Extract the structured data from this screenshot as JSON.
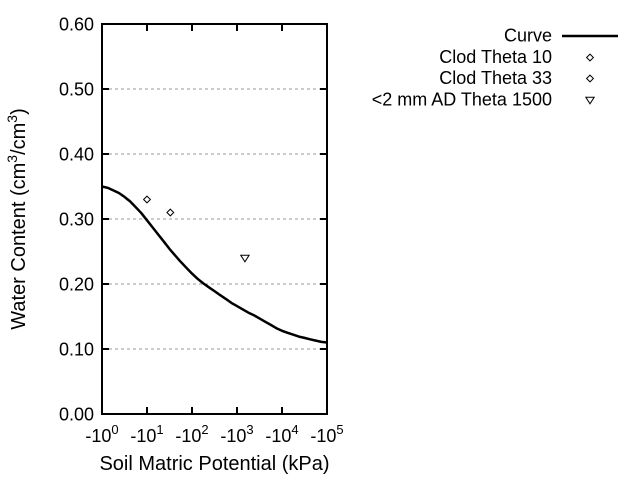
{
  "window": {
    "background": "#ffffff",
    "title": ""
  },
  "chart_data": {
    "type": "line",
    "title": "",
    "xlabel": "Soil Matric Potential (kPa)",
    "ylabel": "Water Content (cm3/cm3)",
    "ylabel_rich": [
      {
        "text": "Water Content (cm"
      },
      {
        "sup": "3"
      },
      {
        "text": "/cm"
      },
      {
        "sup": "3"
      },
      {
        "text": ")"
      }
    ],
    "x_axis": {
      "scale": "negative log10, kPa",
      "range_decades": [
        0,
        5
      ],
      "ticks": [
        {
          "mantissa": "-10",
          "exponent": "0",
          "decade": 0
        },
        {
          "mantissa": "-10",
          "exponent": "1",
          "decade": 1
        },
        {
          "mantissa": "-10",
          "exponent": "2",
          "decade": 2
        },
        {
          "mantissa": "-10",
          "exponent": "3",
          "decade": 3
        },
        {
          "mantissa": "-10",
          "exponent": "4",
          "decade": 4
        },
        {
          "mantissa": "-10",
          "exponent": "5",
          "decade": 5
        }
      ]
    },
    "y_axis": {
      "range": [
        0.0,
        0.6
      ],
      "ticks": [
        {
          "label": "0.00",
          "value": 0.0
        },
        {
          "label": "0.10",
          "value": 0.1
        },
        {
          "label": "0.20",
          "value": 0.2
        },
        {
          "label": "0.30",
          "value": 0.3
        },
        {
          "label": "0.40",
          "value": 0.4
        },
        {
          "label": "0.50",
          "value": 0.5
        },
        {
          "label": "0.60",
          "value": 0.6
        }
      ]
    },
    "grid": {
      "horizontal": true,
      "vertical": false,
      "color": "#999999",
      "style": "dashed"
    },
    "series": [
      {
        "name": "Curve",
        "type": "line",
        "color": "#000000",
        "points_logdecade_theta": [
          [
            0,
            0.35
          ],
          [
            0.125,
            0.348
          ],
          [
            0.25,
            0.344
          ],
          [
            0.375,
            0.34
          ],
          [
            0.5,
            0.334
          ],
          [
            0.625,
            0.327
          ],
          [
            0.75,
            0.318
          ],
          [
            0.875,
            0.309
          ],
          [
            1.0,
            0.298
          ],
          [
            1.125,
            0.287
          ],
          [
            1.25,
            0.276
          ],
          [
            1.375,
            0.265
          ],
          [
            1.5,
            0.254
          ],
          [
            1.625,
            0.244
          ],
          [
            1.75,
            0.234
          ],
          [
            1.875,
            0.225
          ],
          [
            2.0,
            0.216
          ],
          [
            2.125,
            0.208
          ],
          [
            2.25,
            0.201
          ],
          [
            2.375,
            0.195
          ],
          [
            2.5,
            0.189
          ],
          [
            2.625,
            0.183
          ],
          [
            2.75,
            0.177
          ],
          [
            2.875,
            0.171
          ],
          [
            3.0,
            0.166
          ],
          [
            3.125,
            0.161
          ],
          [
            3.25,
            0.156
          ],
          [
            3.375,
            0.152
          ],
          [
            3.5,
            0.147
          ],
          [
            3.625,
            0.142
          ],
          [
            3.75,
            0.137
          ],
          [
            3.875,
            0.132
          ],
          [
            4.0,
            0.128
          ],
          [
            4.125,
            0.125
          ],
          [
            4.25,
            0.122
          ],
          [
            4.375,
            0.119
          ],
          [
            4.5,
            0.117
          ],
          [
            4.625,
            0.115
          ],
          [
            4.75,
            0.113
          ],
          [
            4.875,
            0.111
          ],
          [
            5.0,
            0.11
          ]
        ]
      },
      {
        "name": "Clod Theta 10",
        "type": "scatter",
        "marker": "diamond",
        "color": "#000000",
        "points_kpa_theta": [
          [
            -10,
            0.33
          ]
        ]
      },
      {
        "name": "Clod Theta 33",
        "type": "scatter",
        "marker": "diamond",
        "color": "#000000",
        "points_kpa_theta": [
          [
            -33,
            0.31
          ]
        ]
      },
      {
        "name": "<2 mm AD Theta 1500",
        "type": "scatter",
        "marker": "triangle-down",
        "color": "#000000",
        "points_kpa_theta": [
          [
            -1500,
            0.24
          ]
        ]
      }
    ],
    "legend": {
      "position": "outside-top-right",
      "entries": [
        {
          "label": "Curve",
          "sample": "line"
        },
        {
          "label": "Clod Theta 10",
          "sample": "diamond"
        },
        {
          "label": "Clod Theta 33",
          "sample": "diamond"
        },
        {
          "label": "<2 mm AD Theta 1500",
          "sample": "triangle-down"
        }
      ]
    }
  }
}
